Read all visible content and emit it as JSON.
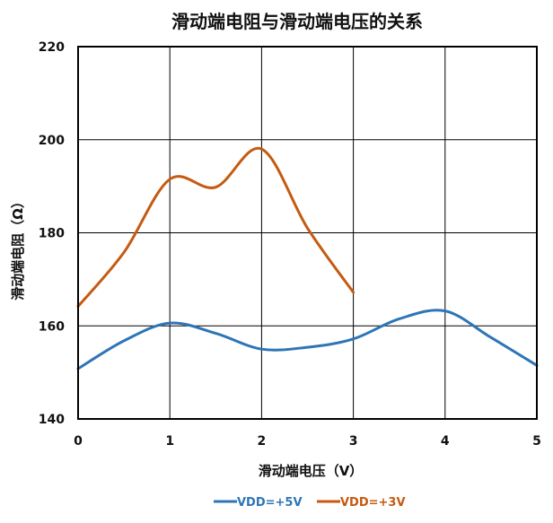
{
  "colors": {
    "background": "#ffffff",
    "grid": "#000000",
    "frame": "#000000",
    "text": "#111111"
  },
  "chart_data": {
    "type": "line",
    "title": "滑动端电阻与滑动端电压的关系",
    "xlabel": "滑动端电压（V）",
    "ylabel": "滑动端电阻（Ω）",
    "xlim": [
      0,
      5
    ],
    "ylim": [
      140,
      220
    ],
    "xticks": [
      0,
      1,
      2,
      3,
      4,
      5
    ],
    "yticks": [
      140,
      160,
      180,
      200,
      220
    ],
    "xtick_labels": [
      "0",
      "1",
      "2",
      "3",
      "4",
      "5"
    ],
    "ytick_labels": [
      "140",
      "160",
      "180",
      "200",
      "220"
    ],
    "grid": true,
    "smooth": true,
    "legend_position": "bottom-center",
    "series": [
      {
        "name": "VDD=+5V",
        "color": "#2e75b6",
        "x": [
          0,
          0.5,
          1,
          1.5,
          2,
          2.5,
          3,
          3.5,
          4,
          4.5,
          5
        ],
        "y": [
          150.8,
          156.8,
          160.6,
          158.4,
          155.0,
          155.4,
          157.2,
          161.5,
          163.2,
          157.5,
          151.5
        ]
      },
      {
        "name": "VDD=+3V",
        "color": "#c55a11",
        "x": [
          0,
          0.5,
          1,
          1.5,
          2,
          2.5,
          3
        ],
        "y": [
          164.2,
          175.8,
          191.5,
          189.8,
          198.0,
          181.0,
          167.2
        ]
      }
    ]
  }
}
